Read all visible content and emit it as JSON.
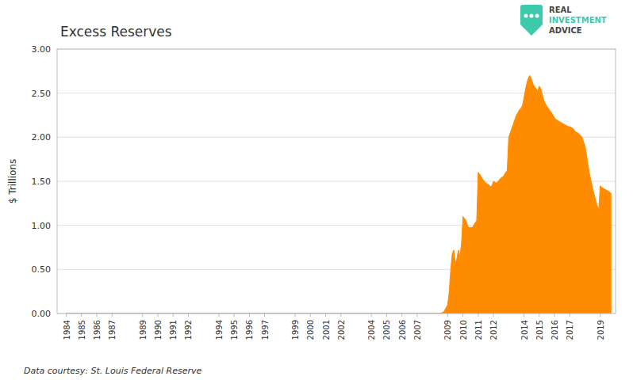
{
  "chart_data": {
    "type": "area",
    "title": "Excess Reserves",
    "y_label": "$ Trillions",
    "annotations": [
      "Data courtesy: St. Louis Federal Reserve",
      "REAL",
      "INVESTMENT",
      "ADVICE"
    ],
    "color": "#FF8C00",
    "grid": true,
    "xlim": [
      1983.4,
      2020.0
    ],
    "xticks": [
      1984,
      1985,
      1986,
      1987,
      1989,
      1990,
      1991,
      1992,
      1994,
      1995,
      1996,
      1997,
      1999,
      2000,
      2001,
      2002,
      2004,
      2005,
      2006,
      2007,
      2009,
      2010,
      2011,
      2012,
      2014,
      2015,
      2016,
      2017,
      2019
    ],
    "ylim": [
      0,
      3.0
    ],
    "yticks": [
      {
        "value": 0.0,
        "label": "0.00"
      },
      {
        "value": 0.5,
        "label": "0.50"
      },
      {
        "value": 1.0,
        "label": "1.00"
      },
      {
        "value": 1.5,
        "label": "1.50"
      },
      {
        "value": 2.0,
        "label": "2.00"
      },
      {
        "value": 2.5,
        "label": "2.50"
      },
      {
        "value": 3.0,
        "label": "3.00"
      }
    ],
    "x": [
      1984,
      1985,
      1986,
      1987,
      1988,
      1989,
      1990,
      1991,
      1992,
      1993,
      1994,
      1995,
      1996,
      1997,
      1998,
      1999,
      2000,
      2001,
      2002,
      2003,
      2004,
      2005,
      2006,
      2007,
      2007.5,
      2008.0,
      2008.25,
      2008.5,
      2008.75,
      2009.0,
      2009.1,
      2009.2,
      2009.3,
      2009.4,
      2009.5,
      2009.6,
      2009.7,
      2009.8,
      2009.9,
      2010.0,
      2010.1,
      2010.2,
      2010.3,
      2010.4,
      2010.5,
      2010.6,
      2010.7,
      2010.8,
      2010.9,
      2011.0,
      2011.1,
      2011.2,
      2011.3,
      2011.4,
      2011.5,
      2011.6,
      2011.7,
      2011.8,
      2011.9,
      2012.0,
      2012.1,
      2012.2,
      2012.3,
      2012.4,
      2012.5,
      2012.6,
      2012.7,
      2012.8,
      2012.9,
      2013.0,
      2013.1,
      2013.2,
      2013.3,
      2013.4,
      2013.5,
      2013.6,
      2013.7,
      2013.8,
      2013.9,
      2014.0,
      2014.1,
      2014.2,
      2014.3,
      2014.4,
      2014.5,
      2014.6,
      2014.7,
      2014.8,
      2014.9,
      2015.0,
      2015.1,
      2015.2,
      2015.3,
      2015.4,
      2015.5,
      2015.6,
      2015.7,
      2015.8,
      2015.9,
      2016.0,
      2016.1,
      2016.2,
      2016.3,
      2016.4,
      2016.5,
      2016.6,
      2016.7,
      2016.8,
      2016.9,
      2017.0,
      2017.1,
      2017.2,
      2017.3,
      2017.4,
      2017.5,
      2017.6,
      2017.7,
      2017.8,
      2017.9,
      2018.0,
      2018.1,
      2018.2,
      2018.3,
      2018.4,
      2018.5,
      2018.6,
      2018.7,
      2018.8,
      2018.9,
      2019.0,
      2019.1,
      2019.2,
      2019.3,
      2019.4,
      2019.5,
      2019.6,
      2019.7
    ],
    "values": [
      0.0,
      0.0,
      0.0,
      0.0,
      0.0,
      0.0,
      0.0,
      0.0,
      0.0,
      0.0,
      0.0,
      0.0,
      0.0,
      0.0,
      0.0,
      0.0,
      0.0,
      0.0,
      0.0,
      0.0,
      0.0,
      0.0,
      0.0,
      0.0,
      0.0,
      0.0,
      0.0,
      0.0,
      0.02,
      0.1,
      0.25,
      0.5,
      0.68,
      0.72,
      0.58,
      0.62,
      0.72,
      0.65,
      0.78,
      1.1,
      1.08,
      1.05,
      1.0,
      0.97,
      0.98,
      0.97,
      1.0,
      1.03,
      1.05,
      1.6,
      1.58,
      1.55,
      1.52,
      1.5,
      1.48,
      1.47,
      1.46,
      1.44,
      1.45,
      1.5,
      1.49,
      1.48,
      1.5,
      1.52,
      1.54,
      1.55,
      1.57,
      1.6,
      1.62,
      2.0,
      2.05,
      2.1,
      2.15,
      2.2,
      2.25,
      2.28,
      2.31,
      2.33,
      2.36,
      2.45,
      2.55,
      2.62,
      2.68,
      2.7,
      2.65,
      2.6,
      2.57,
      2.55,
      2.52,
      2.58,
      2.55,
      2.48,
      2.42,
      2.38,
      2.35,
      2.33,
      2.3,
      2.28,
      2.25,
      2.22,
      2.2,
      2.19,
      2.18,
      2.17,
      2.16,
      2.15,
      2.14,
      2.13,
      2.12,
      2.12,
      2.11,
      2.1,
      2.08,
      2.06,
      2.05,
      2.04,
      2.02,
      2.0,
      1.95,
      1.9,
      1.8,
      1.68,
      1.58,
      1.5,
      1.42,
      1.35,
      1.28,
      1.22,
      1.18,
      1.45,
      1.43,
      1.42,
      1.41,
      1.4,
      1.39,
      1.38,
      1.36
    ]
  }
}
